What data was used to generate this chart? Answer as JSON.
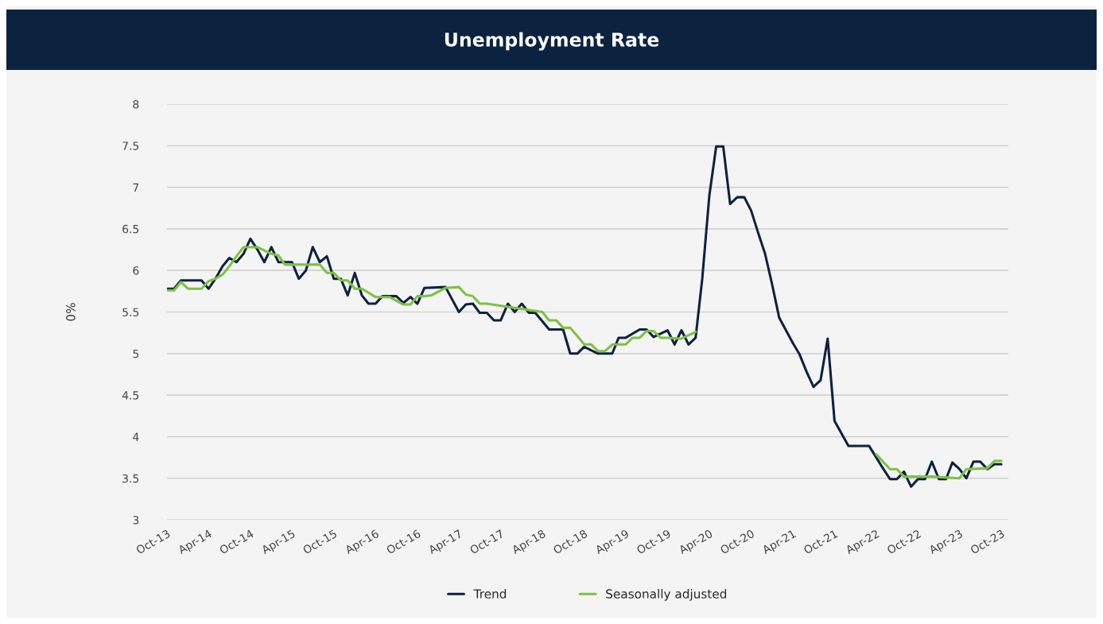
{
  "chart_data": {
    "type": "line",
    "title": "Unemployment Rate",
    "ylabel": "0%",
    "ylim": [
      3,
      8
    ],
    "yticks": [
      3,
      3.5,
      4,
      4.5,
      5,
      5.5,
      6,
      6.5,
      7,
      7.5,
      8
    ],
    "xlim": [
      "2013-10",
      "2023-11"
    ],
    "xticks": [
      {
        "value": "2013-10",
        "label": "Oct-13"
      },
      {
        "value": "2014-04",
        "label": "Apr-14"
      },
      {
        "value": "2014-10",
        "label": "Oct-14"
      },
      {
        "value": "2015-04",
        "label": "Apr-15"
      },
      {
        "value": "2015-10",
        "label": "Oct-15"
      },
      {
        "value": "2016-04",
        "label": "Apr-16"
      },
      {
        "value": "2016-10",
        "label": "Oct-16"
      },
      {
        "value": "2017-04",
        "label": "Apr-17"
      },
      {
        "value": "2017-10",
        "label": "Oct-17"
      },
      {
        "value": "2018-04",
        "label": "Apr-18"
      },
      {
        "value": "2018-10",
        "label": "Oct-18"
      },
      {
        "value": "2019-04",
        "label": "Apr-19"
      },
      {
        "value": "2019-10",
        "label": "Oct-19"
      },
      {
        "value": "2020-04",
        "label": "Apr-20"
      },
      {
        "value": "2020-10",
        "label": "Oct-20"
      },
      {
        "value": "2021-04",
        "label": "Apr-21"
      },
      {
        "value": "2021-10",
        "label": "Oct-21"
      },
      {
        "value": "2022-04",
        "label": "Apr-22"
      },
      {
        "value": "2022-10",
        "label": "Oct-22"
      },
      {
        "value": "2023-04",
        "label": "Apr-23"
      },
      {
        "value": "2023-10",
        "label": "Oct-23"
      }
    ],
    "grid": "y",
    "legend": "bottom",
    "line_style": "solid",
    "marker": "none",
    "series": [
      {
        "name": "Trend",
        "color": "#0d2240",
        "x": [
          "2013-10",
          "2013-11",
          "2013-12",
          "2014-03",
          "2014-04",
          "2014-05",
          "2014-06",
          "2014-07",
          "2014-08",
          "2014-09",
          "2014-10",
          "2014-11",
          "2014-12",
          "2015-01",
          "2015-02",
          "2015-04",
          "2015-05",
          "2015-06",
          "2015-07",
          "2015-08",
          "2015-09",
          "2015-10",
          "2015-11",
          "2015-12",
          "2016-01",
          "2016-02",
          "2016-03",
          "2016-04",
          "2016-05",
          "2016-07",
          "2016-08",
          "2016-09",
          "2016-10",
          "2016-11",
          "2017-02",
          "2017-04",
          "2017-05",
          "2017-06",
          "2017-07",
          "2017-08",
          "2017-09",
          "2017-10",
          "2017-11",
          "2017-12",
          "2018-01",
          "2018-02",
          "2018-03",
          "2018-05",
          "2018-07",
          "2018-08",
          "2018-09",
          "2018-10",
          "2018-12",
          "2019-02",
          "2019-03",
          "2019-04",
          "2019-06",
          "2019-07",
          "2019-08",
          "2019-10",
          "2019-11",
          "2019-12",
          "2020-01",
          "2020-02",
          "2020-03",
          "2020-04",
          "2020-05",
          "2020-06",
          "2020-07",
          "2020-08",
          "2020-09",
          "2020-10",
          "2020-11",
          "2020-12",
          "2021-01",
          "2021-02",
          "2021-04",
          "2021-05",
          "2021-06",
          "2021-07",
          "2021-08",
          "2021-09",
          "2021-10",
          "2021-12",
          "2022-03",
          "2022-05",
          "2022-06",
          "2022-07",
          "2022-08",
          "2022-09",
          "2022-10",
          "2022-11",
          "2022-12",
          "2023-01",
          "2023-02",
          "2023-03",
          "2023-04",
          "2023-05",
          "2023-06",
          "2023-07",
          "2023-08",
          "2023-09",
          "2023-10"
        ],
        "values": [
          5.78,
          5.78,
          5.88,
          5.88,
          5.78,
          5.9,
          6.05,
          6.15,
          6.1,
          6.2,
          6.38,
          6.25,
          6.1,
          6.28,
          6.1,
          6.1,
          5.9,
          6.0,
          6.28,
          6.1,
          6.17,
          5.9,
          5.9,
          5.7,
          5.97,
          5.7,
          5.6,
          5.6,
          5.69,
          5.69,
          5.61,
          5.68,
          5.6,
          5.79,
          5.8,
          5.5,
          5.59,
          5.6,
          5.49,
          5.49,
          5.4,
          5.4,
          5.6,
          5.5,
          5.6,
          5.49,
          5.49,
          5.29,
          5.29,
          5.0,
          5.0,
          5.08,
          5.0,
          5.0,
          5.19,
          5.19,
          5.29,
          5.29,
          5.2,
          5.28,
          5.11,
          5.28,
          5.11,
          5.19,
          5.9,
          6.9,
          7.49,
          7.49,
          6.8,
          6.88,
          6.88,
          6.72,
          6.45,
          6.2,
          5.83,
          5.43,
          5.13,
          4.99,
          4.78,
          4.6,
          4.68,
          5.18,
          4.19,
          3.89,
          3.89,
          3.62,
          3.49,
          3.49,
          3.58,
          3.4,
          3.49,
          3.49,
          3.7,
          3.49,
          3.49,
          3.69,
          3.61,
          3.5,
          3.7,
          3.7,
          3.61,
          3.67,
          3.67
        ]
      },
      {
        "name": "Seasonally adjusted",
        "color": "#7dc142",
        "x": [
          "2013-10",
          "2013-11",
          "2013-12",
          "2014-01",
          "2014-03",
          "2014-04",
          "2014-05",
          "2014-06",
          "2014-07",
          "2014-08",
          "2014-09",
          "2014-11",
          "2015-01",
          "2015-02",
          "2015-03",
          "2015-04",
          "2015-08",
          "2015-09",
          "2015-10",
          "2015-11",
          "2015-12",
          "2016-01",
          "2016-02",
          "2016-04",
          "2016-06",
          "2016-08",
          "2016-09",
          "2016-10",
          "2016-11",
          "2016-12",
          "2017-02",
          "2017-04",
          "2017-05",
          "2017-06",
          "2017-07",
          "2017-08",
          "2018-04",
          "2018-05",
          "2018-06",
          "2018-07",
          "2018-08",
          "2018-09",
          "2018-10",
          "2018-11",
          "2018-12",
          "2019-01",
          "2019-02",
          "2019-04",
          "2019-05",
          "2019-06",
          "2019-07",
          "2019-08",
          "2019-09",
          "2019-10",
          "2019-12",
          "2020-02",
          "2020-04",
          "2020-05",
          "2022-04",
          "2022-06",
          "2022-07",
          "2022-08",
          "2022-12",
          "2023-04",
          "2023-05",
          "2023-08",
          "2023-09",
          "2023-10"
        ],
        "values": [
          5.76,
          5.76,
          5.86,
          5.78,
          5.78,
          5.87,
          5.9,
          5.95,
          6.05,
          6.17,
          6.28,
          6.28,
          6.2,
          6.18,
          6.07,
          6.07,
          6.07,
          5.97,
          5.97,
          5.88,
          5.88,
          5.78,
          5.78,
          5.68,
          5.68,
          5.59,
          5.59,
          5.69,
          5.69,
          5.7,
          5.79,
          5.8,
          5.71,
          5.69,
          5.6,
          5.6,
          5.5,
          5.4,
          5.4,
          5.31,
          5.31,
          5.21,
          5.11,
          5.11,
          5.03,
          5.03,
          5.11,
          5.11,
          5.19,
          5.19,
          5.27,
          5.27,
          5.19,
          5.19,
          5.18,
          5.26,
          null,
          null,
          3.79,
          3.61,
          3.61,
          3.52,
          3.52,
          3.5,
          3.61,
          3.62,
          3.71,
          3.71
        ]
      }
    ]
  }
}
